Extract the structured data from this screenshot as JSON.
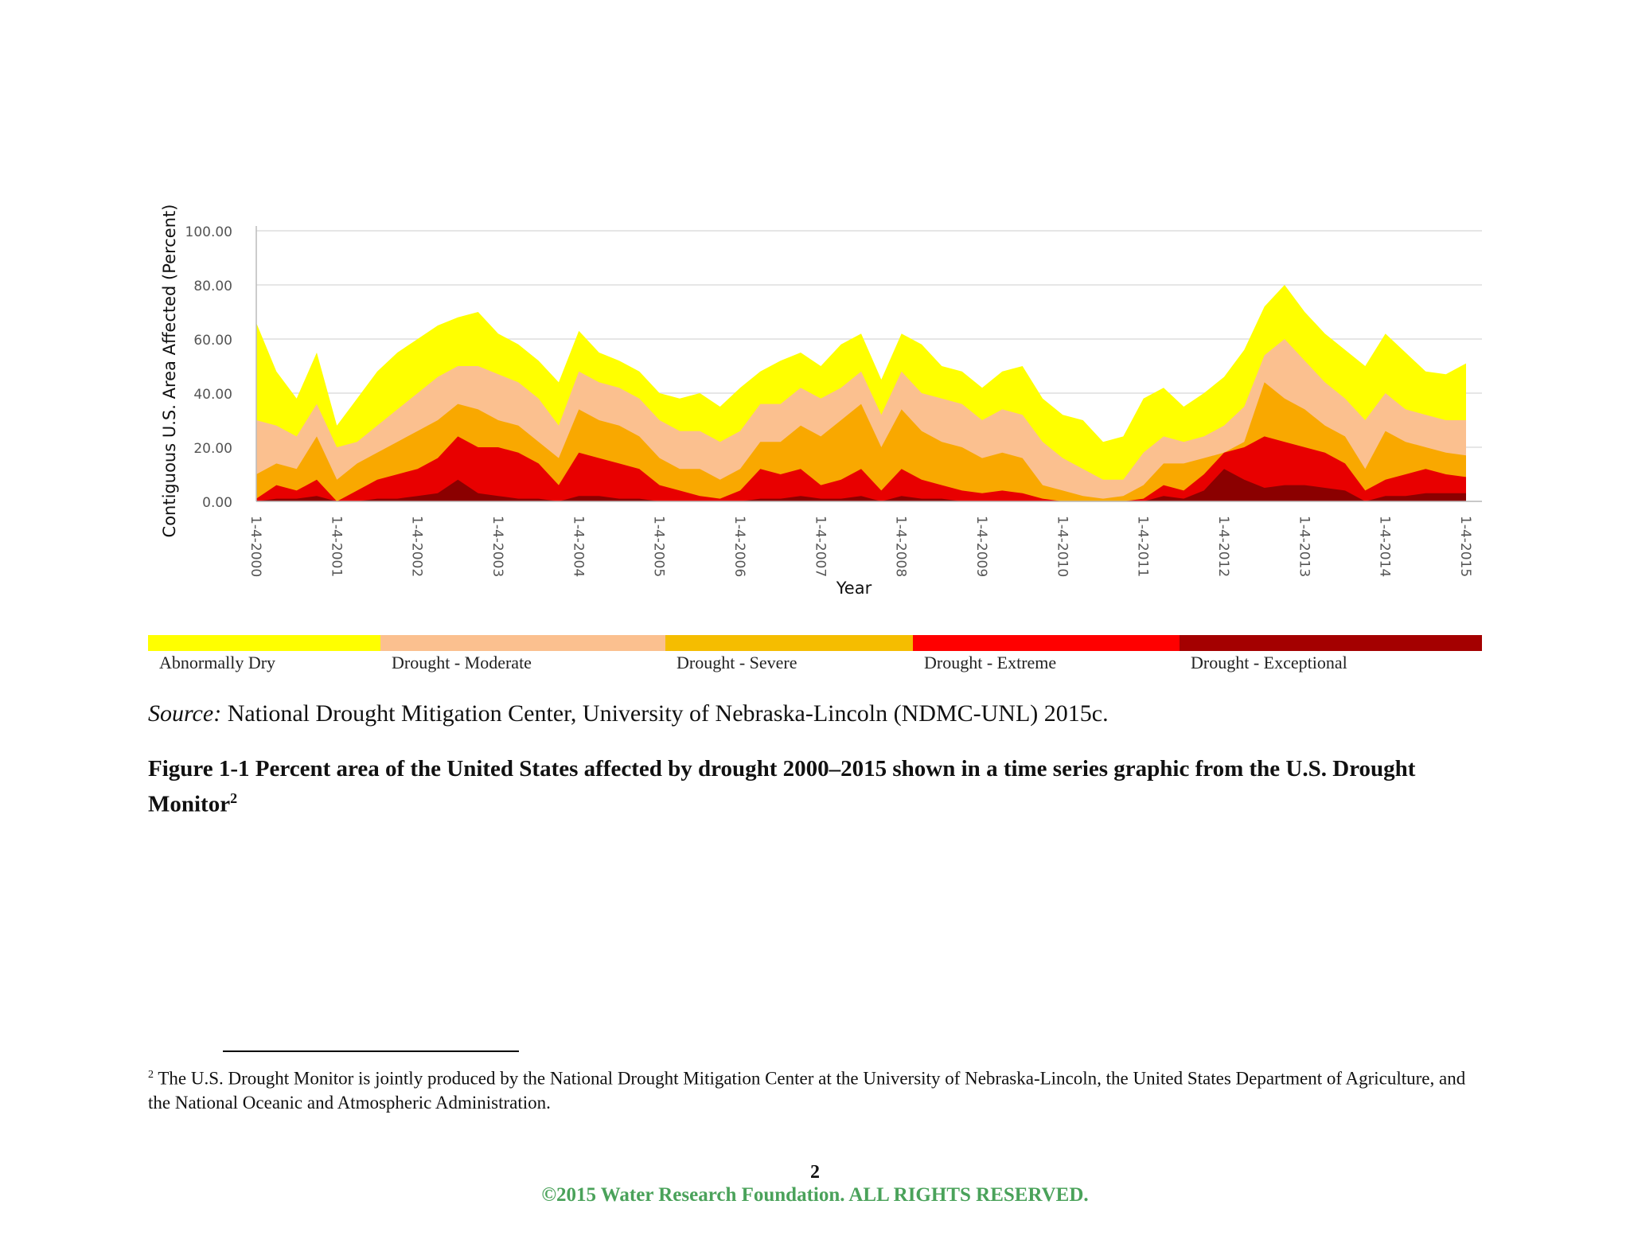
{
  "chart_data": {
    "type": "area",
    "stacked": false,
    "xlabel": "Year",
    "ylabel": "Contiguous U.S. Area Affected (Percent)",
    "ylim": [
      0,
      100
    ],
    "y_ticks": [
      "0.00",
      "20.00",
      "40.00",
      "60.00",
      "80.00",
      "100.00"
    ],
    "x_ticks": [
      "1-4-2000",
      "1-4-2001",
      "1-4-2002",
      "1-4-2003",
      "1-4-2004",
      "1-4-2005",
      "1-4-2006",
      "1-4-2007",
      "1-4-2008",
      "1-4-2009",
      "1-4-2010",
      "1-4-2011",
      "1-4-2012",
      "1-4-2013",
      "1-4-2014",
      "1-4-2015"
    ],
    "x": [
      2000.0,
      2000.25,
      2000.5,
      2000.75,
      2001.0,
      2001.25,
      2001.5,
      2001.75,
      2002.0,
      2002.25,
      2002.5,
      2002.75,
      2003.0,
      2003.25,
      2003.5,
      2003.75,
      2004.0,
      2004.25,
      2004.5,
      2004.75,
      2005.0,
      2005.25,
      2005.5,
      2005.75,
      2006.0,
      2006.25,
      2006.5,
      2006.75,
      2007.0,
      2007.25,
      2007.5,
      2007.75,
      2008.0,
      2008.25,
      2008.5,
      2008.75,
      2009.0,
      2009.25,
      2009.5,
      2009.75,
      2010.0,
      2010.25,
      2010.5,
      2010.75,
      2011.0,
      2011.25,
      2011.5,
      2011.75,
      2012.0,
      2012.25,
      2012.5,
      2012.75,
      2013.0,
      2013.25,
      2013.5,
      2013.75,
      2014.0,
      2014.25,
      2014.5,
      2014.75,
      2015.0
    ],
    "series": [
      {
        "name": "Abnormally Dry",
        "color": "#ffff00",
        "values": [
          66,
          48,
          38,
          55,
          28,
          38,
          48,
          55,
          60,
          65,
          68,
          70,
          62,
          58,
          52,
          44,
          63,
          55,
          52,
          48,
          40,
          38,
          40,
          35,
          42,
          48,
          52,
          55,
          50,
          58,
          62,
          45,
          62,
          58,
          50,
          48,
          42,
          48,
          50,
          38,
          32,
          30,
          22,
          24,
          38,
          42,
          35,
          40,
          46,
          56,
          72,
          80,
          70,
          62,
          56,
          50,
          62,
          55,
          48,
          47,
          51
        ]
      },
      {
        "name": "Drought - Moderate",
        "color": "#fbc08f",
        "values": [
          30,
          28,
          24,
          36,
          20,
          22,
          28,
          34,
          40,
          46,
          50,
          50,
          47,
          44,
          38,
          28,
          48,
          44,
          42,
          38,
          30,
          26,
          26,
          22,
          26,
          36,
          36,
          42,
          38,
          42,
          48,
          32,
          48,
          40,
          38,
          36,
          30,
          34,
          32,
          22,
          16,
          12,
          8,
          8,
          18,
          24,
          22,
          24,
          28,
          35,
          54,
          60,
          52,
          44,
          38,
          30,
          40,
          34,
          32,
          30,
          30
        ]
      },
      {
        "name": "Drought - Severe",
        "color": "#f9a800",
        "values": [
          10,
          14,
          12,
          24,
          8,
          14,
          18,
          22,
          26,
          30,
          36,
          34,
          30,
          28,
          22,
          16,
          34,
          30,
          28,
          24,
          16,
          12,
          12,
          8,
          12,
          22,
          22,
          28,
          24,
          30,
          36,
          20,
          34,
          26,
          22,
          20,
          16,
          18,
          16,
          6,
          4,
          2,
          1,
          2,
          6,
          14,
          14,
          16,
          18,
          22,
          44,
          38,
          34,
          28,
          24,
          12,
          26,
          22,
          20,
          18,
          17
        ]
      },
      {
        "name": "Drought - Extreme",
        "color": "#e80000",
        "values": [
          1,
          6,
          4,
          8,
          0,
          4,
          8,
          10,
          12,
          16,
          24,
          20,
          20,
          18,
          14,
          6,
          18,
          16,
          14,
          12,
          6,
          4,
          2,
          1,
          4,
          12,
          10,
          12,
          6,
          8,
          12,
          4,
          12,
          8,
          6,
          4,
          3,
          4,
          3,
          1,
          0,
          0,
          0,
          0,
          1,
          6,
          4,
          10,
          18,
          20,
          24,
          22,
          20,
          18,
          14,
          4,
          8,
          10,
          12,
          10,
          9
        ]
      },
      {
        "name": "Drought - Exceptional",
        "color": "#8b0000",
        "values": [
          0,
          1,
          1,
          2,
          0,
          0,
          1,
          1,
          2,
          3,
          8,
          3,
          2,
          1,
          1,
          0,
          2,
          2,
          1,
          1,
          0,
          0,
          0,
          0,
          0,
          1,
          1,
          2,
          1,
          1,
          2,
          0,
          2,
          1,
          1,
          0,
          0,
          0,
          0,
          0,
          0,
          0,
          0,
          0,
          0,
          2,
          1,
          4,
          12,
          8,
          5,
          6,
          6,
          5,
          4,
          0,
          2,
          2,
          3,
          3,
          3
        ]
      }
    ]
  },
  "legend": [
    {
      "label": "Abnormally Dry",
      "color": "#ffff00"
    },
    {
      "label": "Drought - Moderate",
      "color": "#fbc08f"
    },
    {
      "label": "Drought - Severe",
      "color": "#f5bd00"
    },
    {
      "label": "Drought - Extreme",
      "color": "#ff0000"
    },
    {
      "label": "Drought - Exceptional",
      "color": "#a40000"
    }
  ],
  "source": {
    "prefix": "Source:",
    "text": " National Drought Mitigation Center, University of Nebraska-Lincoln (NDMC-UNL) 2015c."
  },
  "caption": {
    "text": "Figure 1-1 Percent area of the United States affected by drought 2000–2015 shown in a time series graphic from the U.S. Drought Monitor",
    "footnote_ref": "2"
  },
  "footnote": {
    "number": "2",
    "text": " The U.S. Drought Monitor is jointly produced by the National Drought Mitigation Center at the University of Nebraska-Lincoln, the United States Department of Agriculture, and the National Oceanic and Atmospheric Administration."
  },
  "page_number": "2",
  "copyright": "©2015 Water Research Foundation. ALL RIGHTS RESERVED."
}
